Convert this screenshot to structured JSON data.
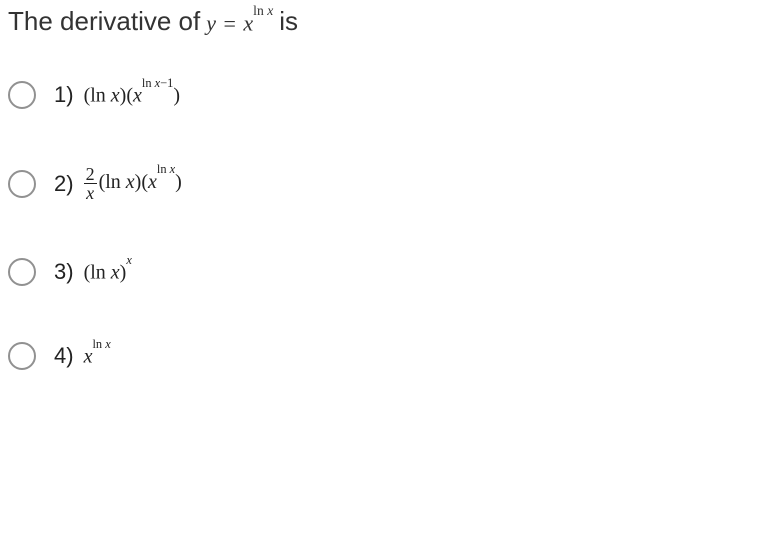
{
  "question": {
    "prefix": "The derivative of",
    "expr_lhs": "y",
    "expr_eq": "=",
    "expr_base": "x",
    "expr_exp": "ln x",
    "suffix": "is"
  },
  "options": [
    {
      "number": "1)",
      "math_html": "(ln <span class='it'>x</span>)(<span class='it'>x</span><sup>ln <span class='it'>x</span>−1</sup>)"
    },
    {
      "number": "2)",
      "math_html": "<span class='frac'><span class='num'>2</span><span class='den'>x</span></span>(ln <span class='it'>x</span>)(<span class='it'>x</span><sup>ln <span class='it'>x</span></sup>)"
    },
    {
      "number": "3)",
      "math_html": "(ln <span class='it'>x</span>)<sup><span class='it'>x</span></sup>"
    },
    {
      "number": "4)",
      "math_html": "<span class='it'>x</span><sup>ln <span class='it'>x</span></sup>"
    }
  ],
  "style": {
    "text_color": "#333333",
    "radio_border": "#919191",
    "question_fontsize": 26,
    "option_number_fontsize": 22,
    "option_math_fontsize": 20,
    "option_gap": 56,
    "radio_size": 28
  }
}
